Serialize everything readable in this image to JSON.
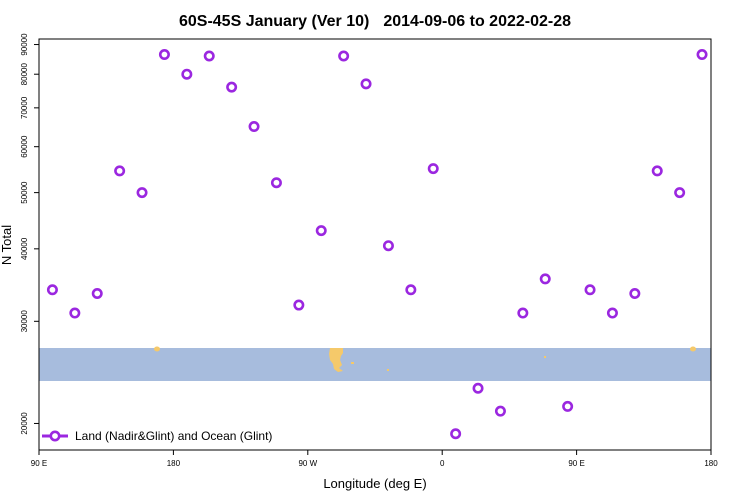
{
  "chart_data": {
    "type": "scatter",
    "title_left": "60S-45S January (Ver 10)",
    "title_right": "2014-09-06 to 2022-02-28",
    "xlabel": "Longitude (deg E)",
    "ylabel": "N Total",
    "x_ticks": [
      {
        "value": 90,
        "label": "90 E"
      },
      {
        "value": 180,
        "label": "180"
      },
      {
        "value": 270,
        "label": "90 W"
      },
      {
        "value": 360,
        "label": "0"
      },
      {
        "value": 450,
        "label": "90 E"
      },
      {
        "value": 540,
        "label": "180"
      }
    ],
    "y_ticks": [
      20000,
      30000,
      40000,
      50000,
      60000,
      70000,
      80000,
      90000
    ],
    "xlim": [
      90,
      540
    ],
    "ylim": [
      18000,
      92000
    ],
    "y_scale": "log",
    "grid": false,
    "legend_position": "bottom-left",
    "series": [
      {
        "name": "Land (Nadir&Glint) and Ocean (Glint)",
        "color": "#9b27e0",
        "marker": "open-circle",
        "x": [
          99,
          114,
          129,
          144,
          159,
          174,
          189,
          204,
          219,
          234,
          249,
          264,
          279,
          294,
          309,
          324,
          339,
          354,
          369,
          384,
          399,
          414,
          429,
          444,
          459,
          474,
          489,
          504,
          519,
          534
        ],
        "y": [
          34000,
          31000,
          33500,
          54500,
          50000,
          86500,
          80000,
          86000,
          76000,
          65000,
          52000,
          32000,
          43000,
          86000,
          77000,
          40500,
          34000,
          55000,
          19200,
          23000,
          21000,
          31000,
          35500,
          21400,
          34000,
          31000,
          33500,
          54500,
          50000,
          86500
        ]
      }
    ],
    "map_strip": {
      "latitude_band": "60S-45S",
      "ocean_color": "#a7bcdd",
      "land_color": "#f5c96a"
    }
  }
}
